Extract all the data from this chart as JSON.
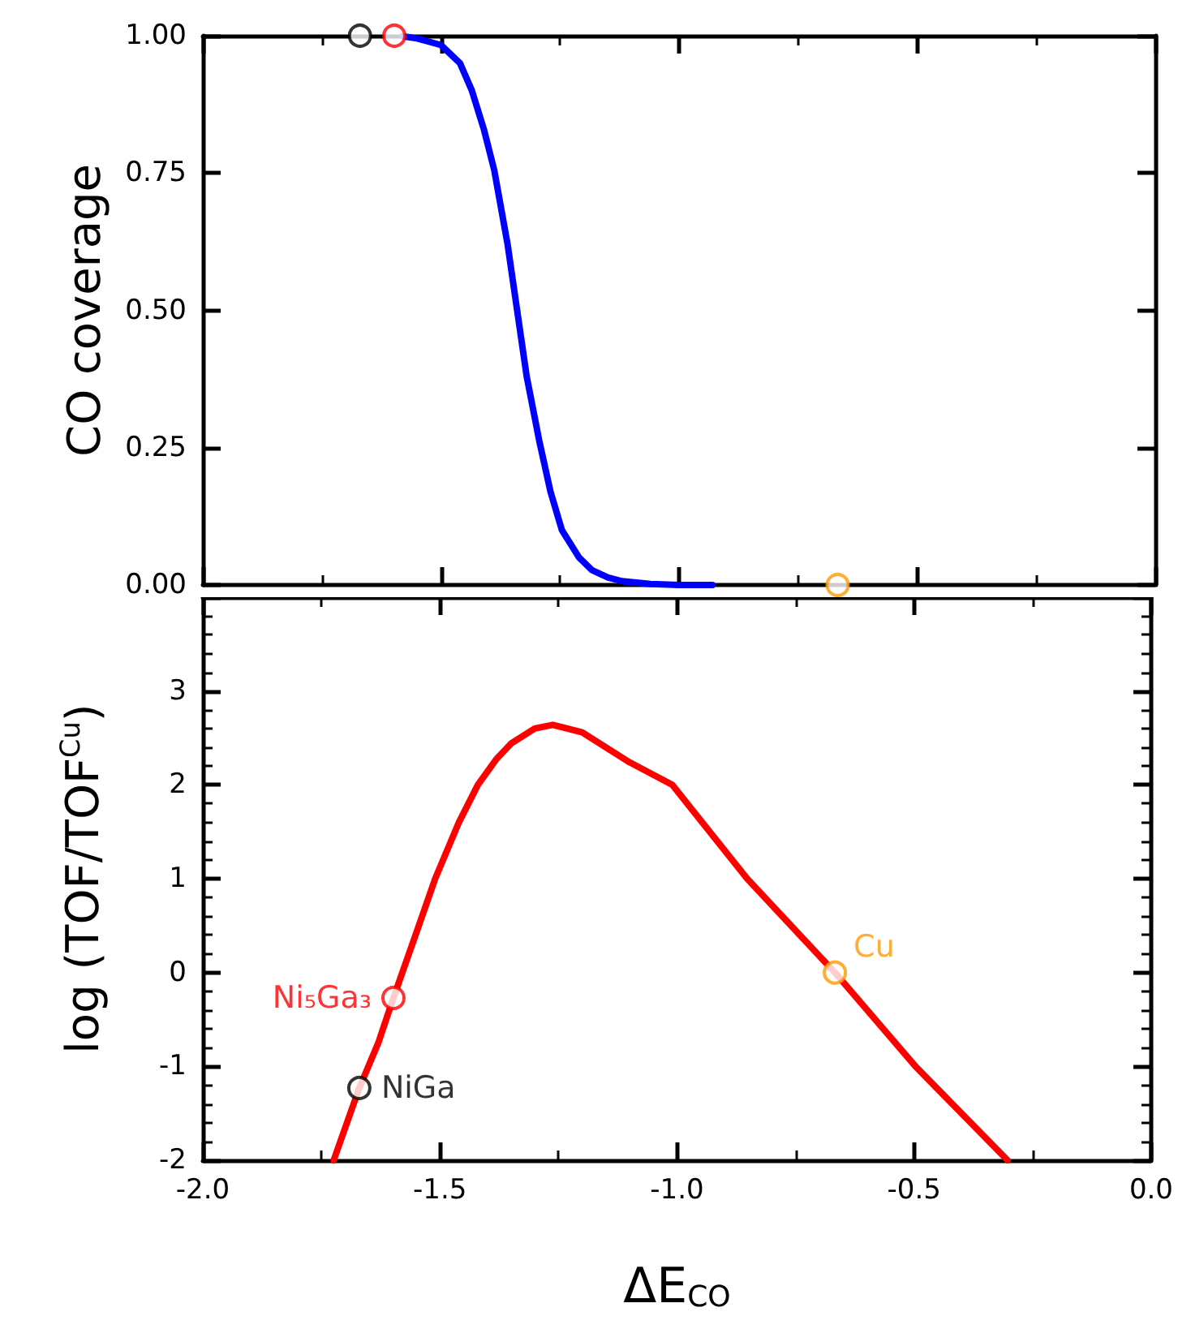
{
  "chart_data": [
    {
      "type": "line",
      "ylabel": "CO coverage",
      "xlim": [
        -2,
        0
      ],
      "xticks": [
        -2,
        -1.5,
        -1,
        -0.5,
        0
      ],
      "ylim": [
        0,
        1
      ],
      "yticks": [
        {
          "value": 0,
          "label": "0.00"
        },
        {
          "value": 0.25,
          "label": "0.25"
        },
        {
          "value": 0.5,
          "label": "0.50"
        },
        {
          "value": 0.75,
          "label": "0.75"
        },
        {
          "value": 1,
          "label": "1.00"
        }
      ],
      "tick_labels": "y",
      "grid": false,
      "legend": false,
      "series": [
        {
          "color": "#0000ff",
          "marker": "none",
          "line_style": "solid",
          "x": [
            -1.58,
            -1.55,
            -1.5,
            -1.46,
            -1.435,
            -1.41,
            -1.388,
            -1.36,
            -1.34,
            -1.32,
            -1.293,
            -1.27,
            -1.246,
            -1.21,
            -1.183,
            -1.15,
            -1.12,
            -1.06,
            -1.0,
            -0.93
          ],
          "values": [
            0.999,
            0.995,
            0.983,
            0.95,
            0.9,
            0.83,
            0.755,
            0.62,
            0.5,
            0.38,
            0.26,
            0.17,
            0.1,
            0.05,
            0.027,
            0.014,
            0.007,
            0.002,
            0,
            0
          ]
        },
        {
          "type": "scatter",
          "color": "#000000",
          "marker": "circle",
          "x": [
            -1.67
          ],
          "values": [
            1.0
          ]
        },
        {
          "type": "scatter",
          "color": "#ff0000",
          "marker": "circle",
          "x": [
            -1.598
          ],
          "values": [
            1.0
          ]
        },
        {
          "type": "scatter",
          "color": "#ff9900",
          "marker": "circle",
          "x": [
            -0.667
          ],
          "values": [
            0
          ]
        }
      ]
    },
    {
      "type": "line",
      "xlabel": "ΔE$_{CO}$",
      "ylabel": "log (TOF/TOF$^{Cu}$)",
      "xlim": [
        -2,
        0
      ],
      "xticks": [
        {
          "value": -2,
          "label": "-2.0"
        },
        {
          "value": -1.5,
          "label": "-1.5"
        },
        {
          "value": -1,
          "label": "-1.0"
        },
        {
          "value": -0.5,
          "label": "-0.5"
        },
        {
          "value": 0,
          "label": "0.0"
        }
      ],
      "ylim": [
        -2,
        4
      ],
      "yticks": [
        -2,
        -1,
        0,
        1,
        2,
        3
      ],
      "grid": false,
      "legend": false,
      "series": [
        {
          "color": "#ff0000",
          "marker": "none",
          "line_style": "solid",
          "x": [
            -1.724,
            -1.67,
            -1.63,
            -1.598,
            -1.55,
            -1.51,
            -1.46,
            -1.42,
            -1.38,
            -1.35,
            -1.3,
            -1.262,
            -1.2,
            -1.1,
            -1.01,
            -0.852,
            -0.667,
            -0.497,
            -0.303
          ],
          "values": [
            -2,
            -1.23,
            -0.75,
            -0.27,
            0.42,
            1.0,
            1.6,
            2.0,
            2.28,
            2.44,
            2.6,
            2.64,
            2.56,
            2.24,
            2.0,
            1.0,
            0,
            -1,
            -2
          ]
        },
        {
          "type": "scatter",
          "name": "Ni₅Ga₃",
          "color": "#ff0000",
          "marker": "circle",
          "x": [
            -1.598
          ],
          "values": [
            -0.27
          ]
        },
        {
          "type": "scatter",
          "name": "NiGa",
          "color": "#000000",
          "marker": "circle",
          "x": [
            -1.67
          ],
          "values": [
            -1.23
          ]
        },
        {
          "type": "scatter",
          "name": "Cu",
          "color": "#ff9900",
          "marker": "circle",
          "x": [
            -0.667
          ],
          "values": [
            0
          ]
        }
      ]
    }
  ]
}
